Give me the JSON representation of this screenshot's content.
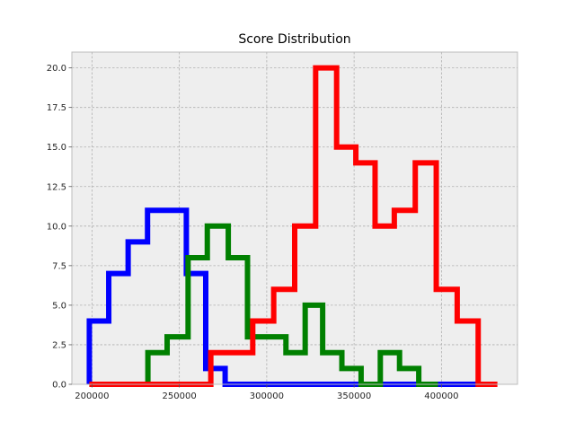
{
  "chart_data": {
    "type": "histogram",
    "title": "Score Distribution",
    "xlabel": "",
    "ylabel": "",
    "xlim": [
      188500,
      443500
    ],
    "ylim": [
      0,
      21
    ],
    "xticks": [
      200000,
      250000,
      300000,
      350000,
      400000
    ],
    "yticks": [
      0.0,
      2.5,
      5.0,
      7.5,
      10.0,
      12.5,
      15.0,
      17.5,
      20.0
    ],
    "xtick_labels": [
      "200000",
      "250000",
      "300000",
      "350000",
      "400000"
    ],
    "ytick_labels": [
      "0.0",
      "2.5",
      "5.0",
      "7.5",
      "10.0",
      "12.5",
      "15.0",
      "17.5",
      "20.0"
    ],
    "grid": true,
    "legend": "none",
    "series": [
      {
        "color": "#0000ff",
        "edges": [
          198500,
          209600,
          220700,
          231800,
          242900,
          254000,
          265100,
          276200,
          287300,
          298400,
          309500,
          320600,
          331700,
          342800,
          353900,
          365000,
          376100,
          387200,
          398300,
          409400,
          420500,
          431600
        ],
        "counts": [
          4,
          7,
          9,
          11,
          11,
          7,
          1,
          0,
          0,
          0,
          0,
          0,
          0,
          0,
          0,
          0,
          0,
          0,
          0,
          0,
          0
        ]
      },
      {
        "color": "#008000",
        "edges": [
          198500,
          209500,
          220500,
          232000,
          243000,
          255000,
          266000,
          278000,
          289000,
          300000,
          311000,
          322000,
          332000,
          343000,
          354000,
          365000,
          376000,
          387000,
          398000
        ],
        "counts": [
          0,
          0,
          0,
          2,
          3,
          8,
          10,
          8,
          3,
          3,
          2,
          5,
          2,
          1,
          0,
          2,
          1,
          0
        ]
      },
      {
        "color": "#ff0000",
        "edges": [
          198500,
          209500,
          220500,
          231500,
          244000,
          256000,
          268000,
          280000,
          292000,
          304000,
          316000,
          328000,
          340000,
          351000,
          362000,
          373000,
          385000,
          397000,
          409000,
          421000,
          432000
        ],
        "counts": [
          0,
          0,
          0,
          0,
          0,
          0,
          2,
          2,
          4,
          6,
          10,
          20,
          15,
          14,
          10,
          11,
          14,
          6,
          4,
          0
        ]
      }
    ]
  }
}
